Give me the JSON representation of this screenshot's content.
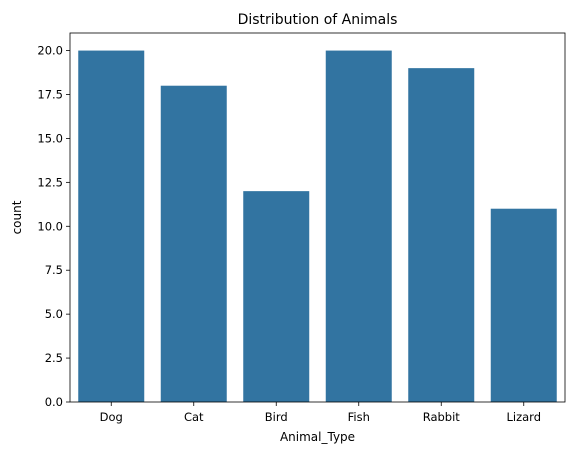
{
  "chart_data": {
    "type": "bar",
    "title": "Distribution of Animals",
    "xlabel": "Animal_Type",
    "ylabel": "count",
    "categories": [
      "Dog",
      "Cat",
      "Bird",
      "Fish",
      "Rabbit",
      "Lizard"
    ],
    "values": [
      20,
      18,
      12,
      20,
      19,
      11
    ],
    "ylim": [
      0,
      21
    ],
    "yticks": [
      0,
      2.5,
      5,
      7.5,
      10,
      12.5,
      15,
      17.5,
      20
    ],
    "ytick_labels": [
      "0.0",
      "2.5",
      "5.0",
      "7.5",
      "10.0",
      "12.5",
      "15.0",
      "17.5",
      "20.0"
    ],
    "grid": false,
    "bar_color": "#3274a1"
  }
}
